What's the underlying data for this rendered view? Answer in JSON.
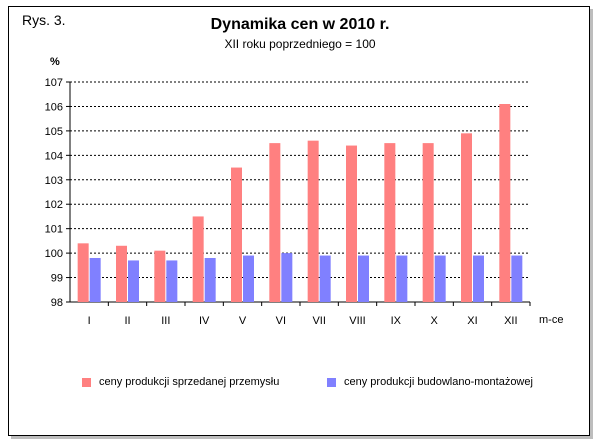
{
  "figure_label": "Rys. 3.",
  "chart_data": {
    "type": "bar",
    "title": "Dynamika cen w 2010 r.",
    "subtitle": "XII roku poprzedniego = 100",
    "ylabel": "%",
    "xlabel": "m-ce",
    "ylim": [
      98,
      107
    ],
    "yticks": [
      98,
      99,
      100,
      101,
      102,
      103,
      104,
      105,
      106,
      107
    ],
    "grid": true,
    "legend_position": "bottom",
    "categories": [
      "I",
      "II",
      "III",
      "IV",
      "V",
      "VI",
      "VII",
      "VIII",
      "IX",
      "X",
      "XI",
      "XII"
    ],
    "series": [
      {
        "name": "ceny produkcji sprzedanej przemysłu",
        "color": "#ff8080",
        "values": [
          100.4,
          100.3,
          100.1,
          101.5,
          103.5,
          104.5,
          104.6,
          104.4,
          104.5,
          104.5,
          104.9,
          106.1
        ]
      },
      {
        "name": "ceny produkcji budowlano-montażowej",
        "color": "#8080ff",
        "values": [
          99.8,
          99.7,
          99.7,
          99.8,
          99.9,
          100.0,
          99.9,
          99.9,
          99.9,
          99.9,
          99.9,
          99.9
        ]
      }
    ]
  }
}
